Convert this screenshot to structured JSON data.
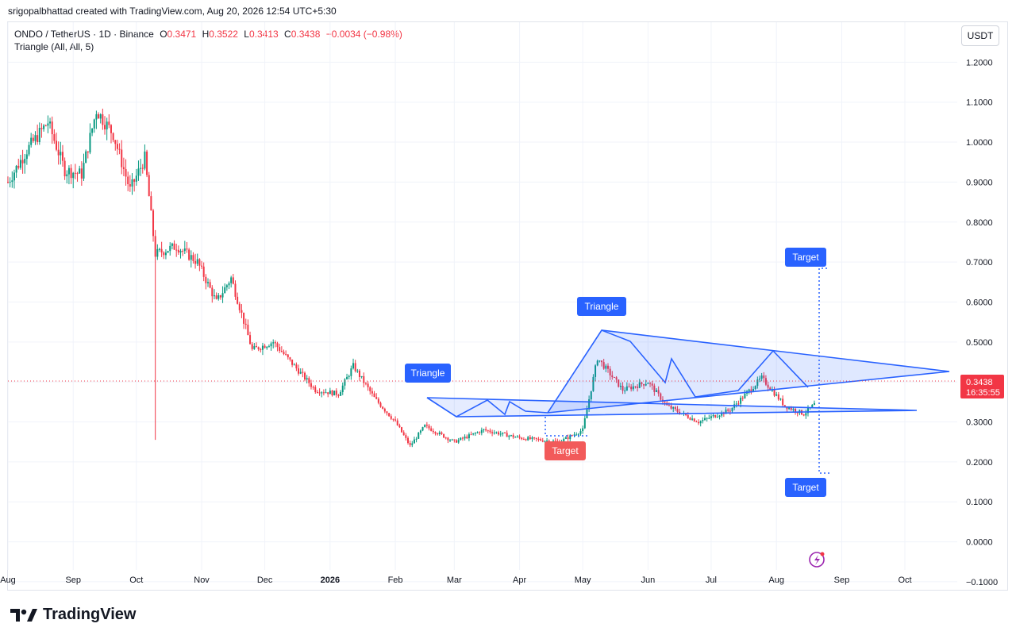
{
  "header": {
    "text": "srigopalbhattad created with TradingView.com, Aug 20, 2026 12:54 UTC+5:30"
  },
  "legend": {
    "symbol": "ONDO / TetherUS · 1D · Binance",
    "open_label": "O",
    "open": "0.3471",
    "high_label": "H",
    "high": "0.3522",
    "low_label": "L",
    "low": "0.3413",
    "close_label": "C",
    "close": "0.3438",
    "change": "−0.0034 (−0.98%)",
    "indicator": "Triangle (All, All, 5)"
  },
  "currency_button": "USDT",
  "price_tag": {
    "price": "0.3438",
    "countdown": "16:35:55"
  },
  "logo_text": "TradingView",
  "colors": {
    "up": "#089981",
    "down": "#f23645",
    "pattern": "#2962ff",
    "target_blue": "#2962ff",
    "target_red": "#f23645",
    "grid": "#f0f3fa"
  },
  "chart_data": {
    "type": "candlestick",
    "y_ticks": [
      "1.2000",
      "1.1000",
      "1.0000",
      "0.9000",
      "0.8000",
      "0.7000",
      "0.6000",
      "0.5000",
      "0.4000",
      "0.3000",
      "0.2000",
      "0.1000",
      "0.0000",
      "−0.1000"
    ],
    "x_ticks": [
      "Aug",
      "Sep",
      "Oct",
      "Nov",
      "Dec",
      "2026",
      "Feb",
      "Mar",
      "Apr",
      "May",
      "Jun",
      "Jul",
      "Aug",
      "Sep",
      "Oct"
    ],
    "ylim": [
      -0.13,
      1.35
    ],
    "close_series": [
      {
        "date": "2025-08-01",
        "close": 0.9
      },
      {
        "date": "2025-08-10",
        "close": 0.98
      },
      {
        "date": "2025-08-20",
        "close": 1.05
      },
      {
        "date": "2025-08-28",
        "close": 0.93
      },
      {
        "date": "2025-09-05",
        "close": 0.92
      },
      {
        "date": "2025-09-12",
        "close": 1.08
      },
      {
        "date": "2025-09-20",
        "close": 1.02
      },
      {
        "date": "2025-09-28",
        "close": 0.88
      },
      {
        "date": "2025-10-05",
        "close": 0.96
      },
      {
        "date": "2025-10-10",
        "close": 0.72
      },
      {
        "date": "2025-10-20",
        "close": 0.74
      },
      {
        "date": "2025-10-30",
        "close": 0.7
      },
      {
        "date": "2025-11-08",
        "close": 0.6
      },
      {
        "date": "2025-11-15",
        "close": 0.66
      },
      {
        "date": "2025-11-25",
        "close": 0.48
      },
      {
        "date": "2025-12-05",
        "close": 0.5
      },
      {
        "date": "2025-12-15",
        "close": 0.44
      },
      {
        "date": "2025-12-25",
        "close": 0.38
      },
      {
        "date": "2026-01-05",
        "close": 0.37
      },
      {
        "date": "2026-01-12",
        "close": 0.44
      },
      {
        "date": "2026-01-22",
        "close": 0.36
      },
      {
        "date": "2026-02-01",
        "close": 0.3
      },
      {
        "date": "2026-02-08",
        "close": 0.24
      },
      {
        "date": "2026-02-15",
        "close": 0.29
      },
      {
        "date": "2026-03-01",
        "close": 0.25
      },
      {
        "date": "2026-03-15",
        "close": 0.28
      },
      {
        "date": "2026-04-01",
        "close": 0.26
      },
      {
        "date": "2026-04-20",
        "close": 0.25
      },
      {
        "date": "2026-05-01",
        "close": 0.28
      },
      {
        "date": "2026-05-08",
        "close": 0.46
      },
      {
        "date": "2026-05-20",
        "close": 0.38
      },
      {
        "date": "2026-06-01",
        "close": 0.4
      },
      {
        "date": "2026-06-10",
        "close": 0.34
      },
      {
        "date": "2026-06-25",
        "close": 0.3
      },
      {
        "date": "2026-07-10",
        "close": 0.33
      },
      {
        "date": "2026-07-25",
        "close": 0.41
      },
      {
        "date": "2026-08-05",
        "close": 0.34
      },
      {
        "date": "2026-08-14",
        "close": 0.32
      },
      {
        "date": "2026-08-19",
        "close": 0.3438
      }
    ],
    "min_wick": {
      "date": "2025-10-10",
      "low": 0.255
    },
    "triangle_labels": [
      "Triangle",
      "Triangle"
    ],
    "target_labels": [
      "Target",
      "Target",
      "Target"
    ],
    "target_prices": [
      0.66,
      0.07,
      0.19
    ]
  }
}
